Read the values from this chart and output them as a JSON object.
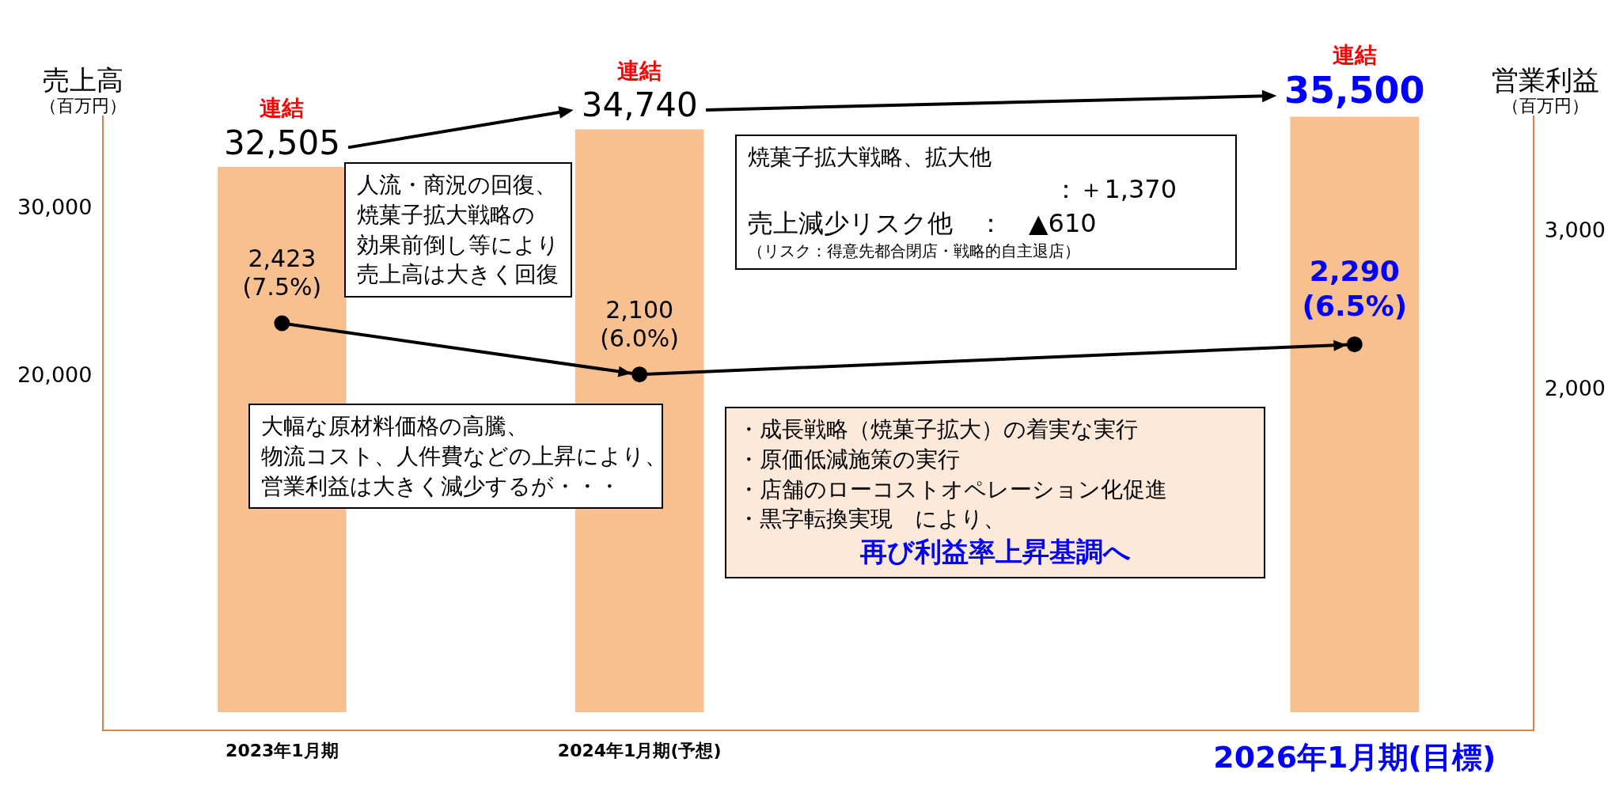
{
  "chart_data": {
    "type": "bar",
    "categories": [
      "2023年1月期",
      "2024年1月期(予想)",
      null,
      "2026年1月期(目標)"
    ],
    "series": [
      {
        "color": "#f8bf8f",
        "values": [
          32505,
          34740,
          null,
          35500
        ],
        "value_labels": [
          "32,505",
          "34,740",
          null,
          "35,500"
        ]
      },
      {
        "type": "line",
        "axis": "y2",
        "color": "#000000",
        "values": [
          2423,
          2100,
          null,
          2290
        ],
        "value_labels": [
          "2,423\n(7.5%)",
          "2,100\n(6.0%)",
          null,
          "2,290\n(6.5%)"
        ]
      }
    ],
    "ylabel": "売上高",
    "y2label": "営業利益",
    "ylim": [
      -1100,
      37500
    ],
    "yticks": [
      {
        "value": 20000,
        "label": "20,000"
      },
      {
        "value": 30000,
        "label": "30,000"
      }
    ],
    "y2lim": [
      -150,
      3940
    ],
    "y2ticks": [
      {
        "value": 2000,
        "label": "2,000"
      },
      {
        "value": 3000,
        "label": "3,000"
      }
    ],
    "grid": false,
    "legend": false,
    "marker": "circle",
    "annotations": [
      {
        "text": "連結",
        "x": "2023年1月期",
        "y": 32505
      },
      {
        "text": "連結",
        "x": "2024年1月期(予想)",
        "y": 34740
      },
      {
        "text": "連結",
        "x": "2026年1月期(目標)",
        "y": 35500
      },
      "（百万円）",
      "（百万円）",
      "人流・商況の回復、焼菓子拡大戦略の効果前倒し等により売上高は大きく回復",
      "焼菓子拡大戦略、拡大他",
      "：＋1,370",
      "売上減少リスク他　：　▲610",
      "（リスク：得意先都合閉店・戦略的自主退店）",
      "大幅な原材料価格の高騰、物流コスト、人件費などの上昇により、営業利益は大きく減少するが・・・",
      "・成長戦略（焼菓子拡大）の着実な実行",
      "・原価低減施策の実行",
      "・店舗のローコストオペレーション化促進",
      "・黒字転換実現　により、",
      "再び利益率上昇基調へ"
    ]
  }
}
